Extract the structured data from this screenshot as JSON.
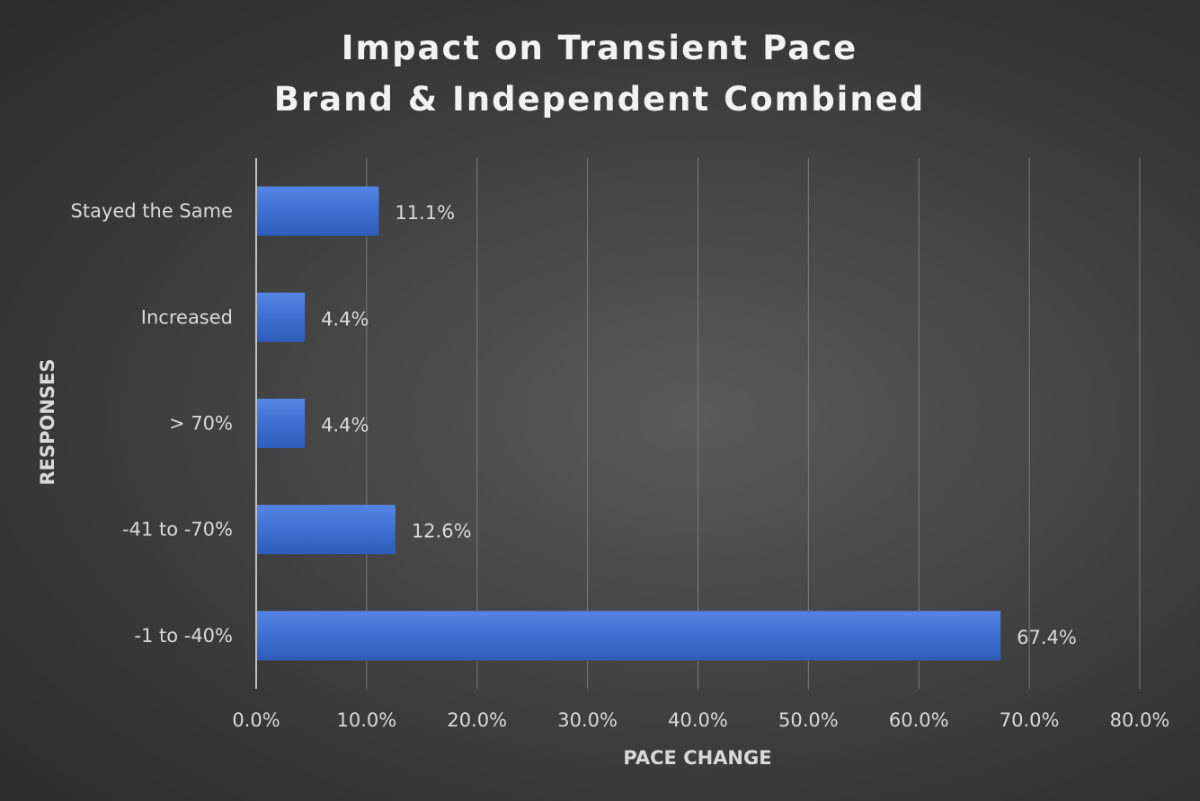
{
  "chart_data": {
    "type": "bar",
    "orientation": "horizontal",
    "title": "Impact on Transient Pace",
    "subtitle": "Brand & Independent Combined",
    "xlabel": "PACE CHANGE",
    "ylabel": "RESPONSES",
    "categories": [
      "Stayed the Same",
      "Increased",
      "> 70%",
      "-41 to -70%",
      "-1 to -40%"
    ],
    "values": [
      11.1,
      4.4,
      4.4,
      12.6,
      67.4
    ],
    "data_labels": [
      "11.1%",
      "4.4%",
      "4.4%",
      "12.6%",
      "67.4%"
    ],
    "xlim": [
      0,
      80
    ],
    "x_ticks": [
      "0.0%",
      "10.0%",
      "20.0%",
      "30.0%",
      "40.0%",
      "50.0%",
      "60.0%",
      "70.0%",
      "80.0%"
    ],
    "grid": true,
    "legend": "none",
    "colors": {
      "bar": "#3f6fd1",
      "bar_light": "#5585e4",
      "bar_dark": "#2f5cba",
      "gridline": "#7a7a7a",
      "axis_line": "#bfbfbf"
    }
  }
}
